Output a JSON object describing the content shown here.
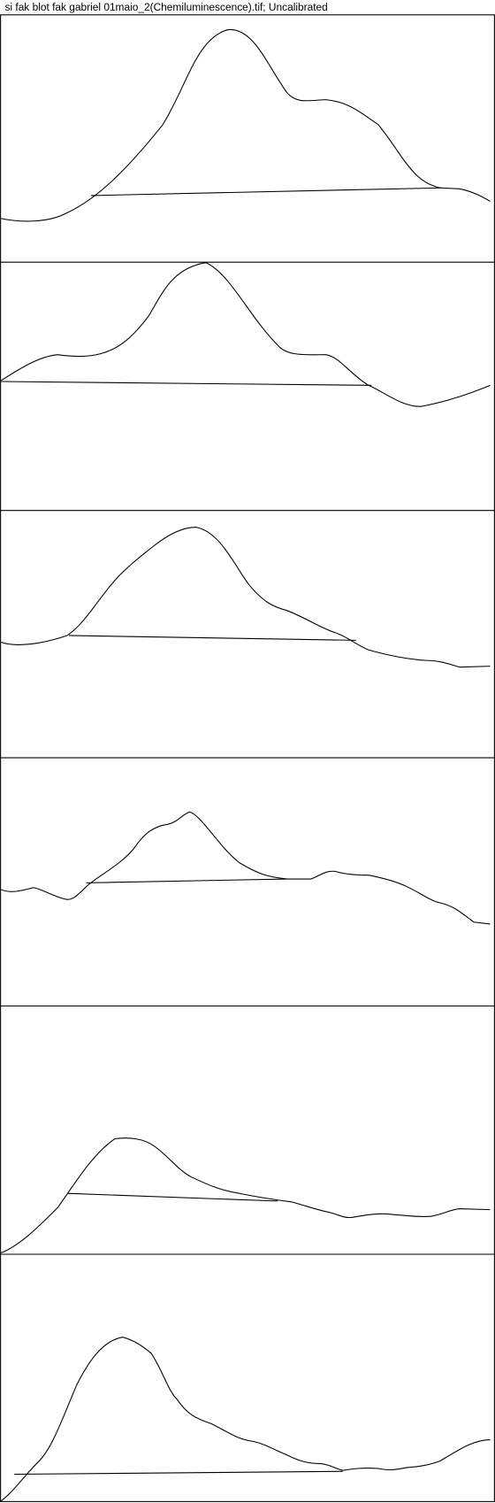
{
  "header": {
    "title": "si fak blot fak gabriel 01maio_2(Chemiluminescence).tif; Uncalibrated"
  }
}
